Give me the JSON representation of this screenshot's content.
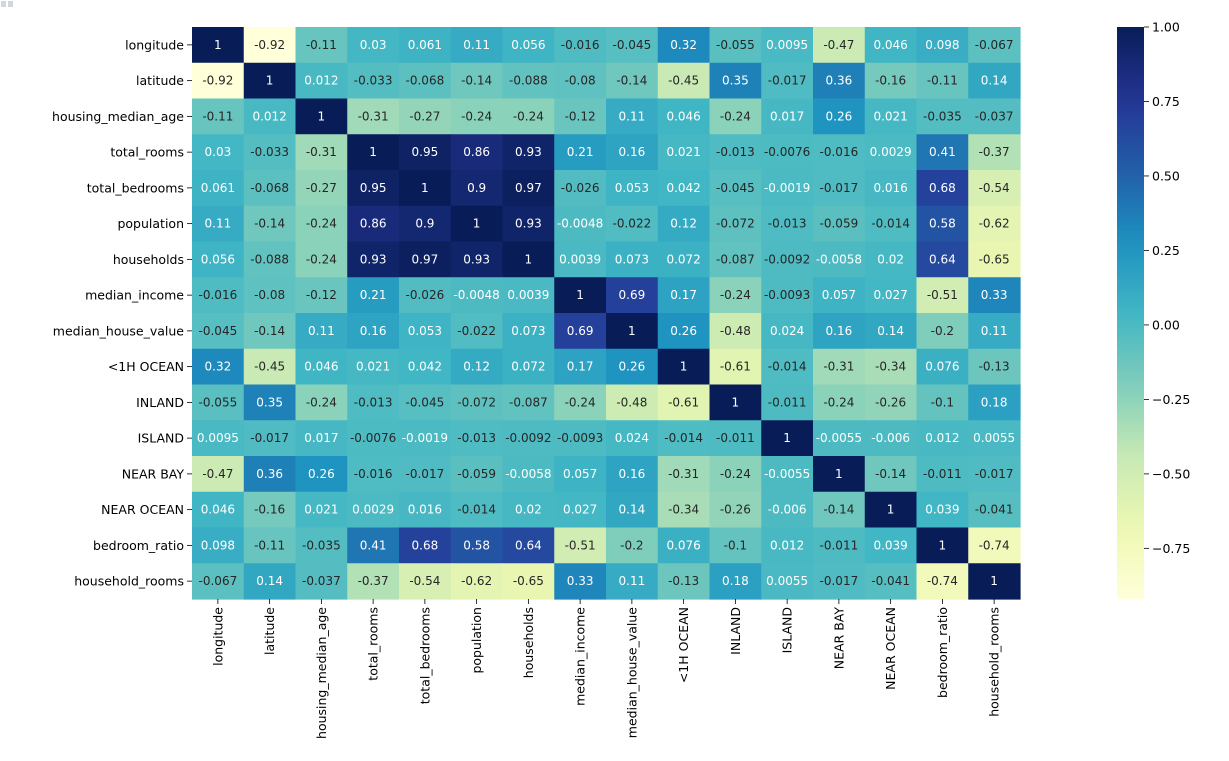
{
  "corner_glyph": "partial-output-icon",
  "chart_data": {
    "type": "heatmap",
    "title": "",
    "colormap": "YlGnBu",
    "color_range": [
      -0.92,
      1.0
    ],
    "labels": [
      "longitude",
      "latitude",
      "housing_median_age",
      "total_rooms",
      "total_bedrooms",
      "population",
      "households",
      "median_income",
      "median_house_value",
      "<1H OCEAN",
      "INLAND",
      "ISLAND",
      "NEAR BAY",
      "NEAR OCEAN",
      "bedroom_ratio",
      "household_rooms"
    ],
    "matrix": [
      [
        "1",
        "-0.92",
        "-0.11",
        "0.03",
        "0.061",
        "0.11",
        "0.056",
        "-0.016",
        "-0.045",
        "0.32",
        "-0.055",
        "0.0095",
        "-0.47",
        "0.046",
        "0.098",
        "-0.067"
      ],
      [
        "-0.92",
        "1",
        "0.012",
        "-0.033",
        "-0.068",
        "-0.14",
        "-0.088",
        "-0.08",
        "-0.14",
        "-0.45",
        "0.35",
        "-0.017",
        "0.36",
        "-0.16",
        "-0.11",
        "0.14"
      ],
      [
        "-0.11",
        "0.012",
        "1",
        "-0.31",
        "-0.27",
        "-0.24",
        "-0.24",
        "-0.12",
        "0.11",
        "0.046",
        "-0.24",
        "0.017",
        "0.26",
        "0.021",
        "-0.035",
        "-0.037"
      ],
      [
        "0.03",
        "-0.033",
        "-0.31",
        "1",
        "0.95",
        "0.86",
        "0.93",
        "0.21",
        "0.16",
        "0.021",
        "-0.013",
        "-0.0076",
        "-0.016",
        "0.0029",
        "0.41",
        "-0.37"
      ],
      [
        "0.061",
        "-0.068",
        "-0.27",
        "0.95",
        "1",
        "0.9",
        "0.97",
        "-0.026",
        "0.053",
        "0.042",
        "-0.045",
        "-0.0019",
        "-0.017",
        "0.016",
        "0.68",
        "-0.54"
      ],
      [
        "0.11",
        "-0.14",
        "-0.24",
        "0.86",
        "0.9",
        "1",
        "0.93",
        "-0.0048",
        "-0.022",
        "0.12",
        "-0.072",
        "-0.013",
        "-0.059",
        "-0.014",
        "0.58",
        "-0.62"
      ],
      [
        "0.056",
        "-0.088",
        "-0.24",
        "0.93",
        "0.97",
        "0.93",
        "1",
        "0.0039",
        "0.073",
        "0.072",
        "-0.087",
        "-0.0092",
        "-0.0058",
        "0.02",
        "0.64",
        "-0.65"
      ],
      [
        "-0.016",
        "-0.08",
        "-0.12",
        "0.21",
        "-0.026",
        "-0.0048",
        "0.0039",
        "1",
        "0.69",
        "0.17",
        "-0.24",
        "-0.0093",
        "0.057",
        "0.027",
        "-0.51",
        "0.33"
      ],
      [
        "-0.045",
        "-0.14",
        "0.11",
        "0.16",
        "0.053",
        "-0.022",
        "0.073",
        "0.69",
        "1",
        "0.26",
        "-0.48",
        "0.024",
        "0.16",
        "0.14",
        "-0.2",
        "0.11"
      ],
      [
        "0.32",
        "-0.45",
        "0.046",
        "0.021",
        "0.042",
        "0.12",
        "0.072",
        "0.17",
        "0.26",
        "1",
        "-0.61",
        "-0.014",
        "-0.31",
        "-0.34",
        "0.076",
        "-0.13"
      ],
      [
        "-0.055",
        "0.35",
        "-0.24",
        "-0.013",
        "-0.045",
        "-0.072",
        "-0.087",
        "-0.24",
        "-0.48",
        "-0.61",
        "1",
        "-0.011",
        "-0.24",
        "-0.26",
        "-0.1",
        "0.18"
      ],
      [
        "0.0095",
        "-0.017",
        "0.017",
        "-0.0076",
        "-0.0019",
        "-0.013",
        "-0.0092",
        "-0.0093",
        "0.024",
        "-0.014",
        "-0.011",
        "1",
        "-0.0055",
        "-0.006",
        "0.012",
        "0.0055"
      ],
      [
        "-0.47",
        "0.36",
        "0.26",
        "-0.016",
        "-0.017",
        "-0.059",
        "-0.0058",
        "0.057",
        "0.16",
        "-0.31",
        "-0.24",
        "-0.0055",
        "1",
        "-0.14",
        "-0.011",
        "-0.017"
      ],
      [
        "0.046",
        "-0.16",
        "0.021",
        "0.0029",
        "0.016",
        "-0.014",
        "0.02",
        "0.027",
        "0.14",
        "-0.34",
        "-0.26",
        "-0.006",
        "-0.14",
        "1",
        "0.039",
        "-0.041"
      ],
      [
        "0.098",
        "-0.11",
        "-0.035",
        "0.41",
        "0.68",
        "0.58",
        "0.64",
        "-0.51",
        "-0.2",
        "0.076",
        "-0.1",
        "0.012",
        "-0.011",
        "0.039",
        "1",
        "-0.74"
      ],
      [
        "-0.067",
        "0.14",
        "-0.037",
        "-0.37",
        "-0.54",
        "-0.62",
        "-0.65",
        "0.33",
        "0.11",
        "-0.13",
        "0.18",
        "0.0055",
        "-0.017",
        "-0.041",
        "-0.74",
        "1"
      ]
    ],
    "colorbar": {
      "ticks": [
        1.0,
        0.75,
        0.5,
        0.25,
        0.0,
        -0.25,
        -0.5,
        -0.75
      ],
      "tick_labels": [
        "1.00",
        "0.75",
        "0.50",
        "0.25",
        "0.00",
        "−0.25",
        "−0.50",
        "−0.75"
      ]
    }
  }
}
